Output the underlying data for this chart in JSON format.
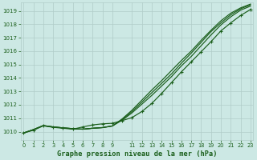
{
  "title": "Graphe pression niveau de la mer (hPa)",
  "bg_color": "#cce8e4",
  "grid_color": "#b0ccc8",
  "line_color": "#1a5e1a",
  "xlim": [
    -0.3,
    23.3
  ],
  "ylim": [
    1009.4,
    1019.6
  ],
  "yticks": [
    1010,
    1011,
    1012,
    1013,
    1014,
    1015,
    1016,
    1017,
    1018,
    1019
  ],
  "xticks": [
    0,
    1,
    2,
    3,
    4,
    5,
    6,
    7,
    8,
    9,
    11,
    12,
    13,
    14,
    15,
    16,
    17,
    18,
    19,
    20,
    21,
    22,
    23
  ],
  "hours": [
    0,
    1,
    2,
    3,
    4,
    5,
    6,
    7,
    8,
    9,
    10,
    11,
    12,
    13,
    14,
    15,
    16,
    17,
    18,
    19,
    20,
    21,
    22,
    23
  ],
  "line_top": [
    1009.9,
    1010.15,
    1010.45,
    1010.35,
    1010.28,
    1010.22,
    1010.18,
    1010.25,
    1010.3,
    1010.42,
    1010.85,
    1011.4,
    1012.05,
    1012.7,
    1013.4,
    1014.1,
    1014.9,
    1015.6,
    1016.4,
    1017.2,
    1017.95,
    1018.55,
    1019.05,
    1019.35
  ],
  "line_mid1": [
    1009.9,
    1010.15,
    1010.45,
    1010.35,
    1010.28,
    1010.22,
    1010.18,
    1010.25,
    1010.3,
    1010.42,
    1010.9,
    1011.5,
    1012.2,
    1012.9,
    1013.6,
    1014.3,
    1015.1,
    1015.85,
    1016.65,
    1017.45,
    1018.1,
    1018.7,
    1019.15,
    1019.45
  ],
  "line_mid2": [
    1009.9,
    1010.15,
    1010.45,
    1010.35,
    1010.28,
    1010.22,
    1010.18,
    1010.25,
    1010.3,
    1010.42,
    1010.95,
    1011.6,
    1012.35,
    1013.1,
    1013.8,
    1014.55,
    1015.3,
    1016.0,
    1016.8,
    1017.55,
    1018.25,
    1018.82,
    1019.22,
    1019.5
  ],
  "line_marked": [
    1009.9,
    1010.1,
    1010.43,
    1010.32,
    1010.25,
    1010.18,
    1010.35,
    1010.5,
    1010.58,
    1010.62,
    1010.82,
    1011.05,
    1011.5,
    1012.1,
    1012.85,
    1013.65,
    1014.45,
    1015.2,
    1015.95,
    1016.7,
    1017.5,
    1018.1,
    1018.65,
    1019.1
  ]
}
